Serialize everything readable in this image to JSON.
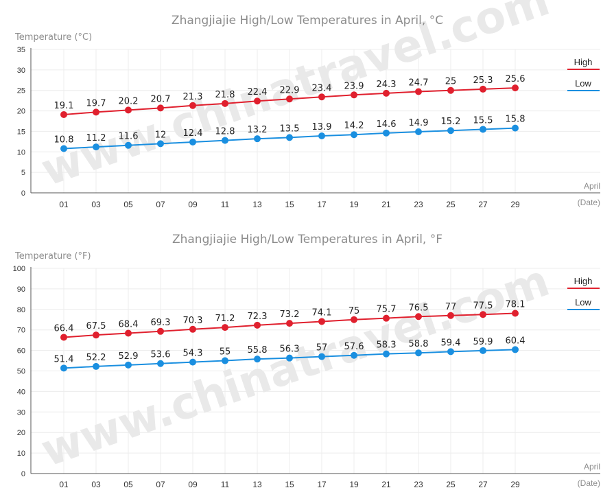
{
  "watermark": "www.chinatravel.com",
  "colors": {
    "high": "#e0202e",
    "low": "#1a8fe0",
    "grid": "#ececec",
    "axis": "#555555"
  },
  "chart_data": [
    {
      "type": "line",
      "title": "Zhangjiajie High/Low Temperatures in April, °C",
      "ylabel": "Temperature (°C)",
      "xlabel_line1": "April",
      "xlabel_line2": "(Date)",
      "categories": [
        "01",
        "03",
        "05",
        "07",
        "09",
        "11",
        "13",
        "15",
        "17",
        "19",
        "21",
        "23",
        "25",
        "27",
        "29"
      ],
      "ylim": [
        0,
        35
      ],
      "yticks": [
        0,
        5,
        10,
        15,
        20,
        25,
        30,
        35
      ],
      "grid": true,
      "legend_position": "top-right",
      "series": [
        {
          "name": "High",
          "color": "#e0202e",
          "values": [
            19.1,
            19.7,
            20.2,
            20.7,
            21.3,
            21.8,
            22.4,
            22.9,
            23.4,
            23.9,
            24.3,
            24.7,
            25,
            25.3,
            25.6
          ]
        },
        {
          "name": "Low",
          "color": "#1a8fe0",
          "values": [
            10.8,
            11.2,
            11.6,
            12,
            12.4,
            12.8,
            13.2,
            13.5,
            13.9,
            14.2,
            14.6,
            14.9,
            15.2,
            15.5,
            15.8
          ]
        }
      ]
    },
    {
      "type": "line",
      "title": "Zhangjiajie High/Low Temperatures in April, °F",
      "ylabel": "Temperature (°F)",
      "xlabel_line1": "April",
      "xlabel_line2": "(Date)",
      "categories": [
        "01",
        "03",
        "05",
        "07",
        "09",
        "11",
        "13",
        "15",
        "17",
        "19",
        "21",
        "23",
        "25",
        "27",
        "29"
      ],
      "ylim": [
        0,
        100
      ],
      "yticks": [
        0,
        10,
        20,
        30,
        40,
        50,
        60,
        70,
        80,
        90,
        100
      ],
      "grid": true,
      "legend_position": "top-right",
      "series": [
        {
          "name": "High",
          "color": "#e0202e",
          "values": [
            66.4,
            67.5,
            68.4,
            69.3,
            70.3,
            71.2,
            72.3,
            73.2,
            74.1,
            75,
            75.7,
            76.5,
            77,
            77.5,
            78.1
          ]
        },
        {
          "name": "Low",
          "color": "#1a8fe0",
          "values": [
            51.4,
            52.2,
            52.9,
            53.6,
            54.3,
            55,
            55.8,
            56.3,
            57,
            57.6,
            58.3,
            58.8,
            59.4,
            59.9,
            60.4
          ]
        }
      ]
    }
  ]
}
